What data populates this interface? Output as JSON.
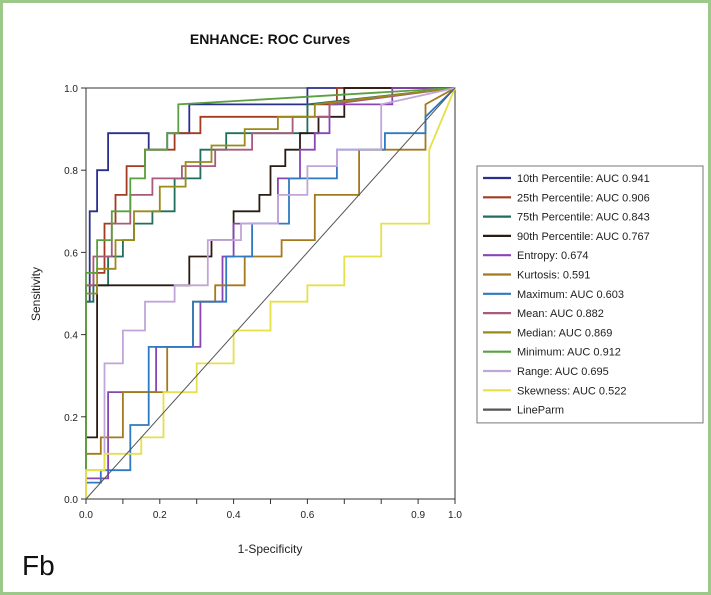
{
  "panel_label": "Fb",
  "chart_data": {
    "type": "line",
    "title": "ENHANCE: ROC Curves",
    "xlabel": "1-Specificity",
    "ylabel": "Sensitivity",
    "xlim": [
      0,
      1
    ],
    "ylim": [
      0,
      1
    ],
    "xticks": [
      "0.0",
      "0.1",
      "0.2",
      "0.3",
      "0.4",
      "0.5",
      "0.6",
      "0.7",
      "0.8",
      "0.9",
      "1.0"
    ],
    "xticks_labeled": [
      "0.0",
      "0.2",
      "0.4",
      "0.6",
      "0.9",
      "1.0"
    ],
    "yticks": [
      "0.0",
      "0.2",
      "0.4",
      "0.6",
      "0.8",
      "1.0"
    ],
    "grid": false,
    "legend_position": "right",
    "series": [
      {
        "name": "10th Percentile: AUC 0.941",
        "color": "#2b2f8c",
        "x": [
          0,
          0,
          0.01,
          0.01,
          0.03,
          0.03,
          0.06,
          0.06,
          0.17,
          0.17,
          0.22,
          0.22,
          0.28,
          0.28,
          0.6,
          0.6,
          0.68,
          0.68,
          1
        ],
        "y": [
          0,
          0.48,
          0.48,
          0.7,
          0.7,
          0.8,
          0.8,
          0.89,
          0.89,
          0.85,
          0.85,
          0.89,
          0.89,
          0.96,
          0.96,
          1,
          1,
          1,
          1
        ]
      },
      {
        "name": "25th Percentile: AUC 0.906",
        "color": "#a23b20",
        "x": [
          0,
          0,
          0.02,
          0.02,
          0.05,
          0.05,
          0.08,
          0.08,
          0.11,
          0.11,
          0.16,
          0.16,
          0.24,
          0.24,
          0.31,
          0.31,
          0.6,
          0.6,
          0.68,
          0.68,
          1
        ],
        "y": [
          0,
          0.52,
          0.52,
          0.55,
          0.55,
          0.67,
          0.67,
          0.74,
          0.74,
          0.81,
          0.81,
          0.85,
          0.85,
          0.89,
          0.89,
          0.93,
          0.93,
          0.96,
          0.96,
          1,
          1
        ]
      },
      {
        "name": "75th Percentile: AUC 0.843",
        "color": "#1f6e5e",
        "x": [
          0,
          0,
          0.02,
          0.02,
          0.06,
          0.06,
          0.1,
          0.1,
          0.13,
          0.13,
          0.18,
          0.18,
          0.24,
          0.24,
          0.31,
          0.31,
          0.38,
          0.38,
          0.6,
          0.6,
          1
        ],
        "y": [
          0,
          0.48,
          0.48,
          0.52,
          0.52,
          0.59,
          0.59,
          0.63,
          0.63,
          0.67,
          0.67,
          0.7,
          0.7,
          0.78,
          0.78,
          0.85,
          0.85,
          0.89,
          0.89,
          0.96,
          1
        ]
      },
      {
        "name": "90th Percentile: AUC 0.767",
        "color": "#2b1a10",
        "x": [
          0,
          0,
          0.03,
          0.03,
          0.28,
          0.28,
          0.34,
          0.34,
          0.4,
          0.4,
          0.47,
          0.47,
          0.5,
          0.5,
          0.54,
          0.54,
          0.58,
          0.58,
          0.63,
          0.63,
          0.7,
          0.7,
          1
        ],
        "y": [
          0,
          0.15,
          0.15,
          0.52,
          0.52,
          0.59,
          0.59,
          0.63,
          0.63,
          0.7,
          0.7,
          0.74,
          0.74,
          0.81,
          0.81,
          0.85,
          0.85,
          0.89,
          0.89,
          0.93,
          0.93,
          1,
          1
        ]
      },
      {
        "name": "Entropy: 0.674",
        "color": "#8a45b5",
        "x": [
          0,
          0,
          0.06,
          0.06,
          0.19,
          0.19,
          0.31,
          0.31,
          0.37,
          0.37,
          0.4,
          0.4,
          0.52,
          0.52,
          0.58,
          0.58,
          0.62,
          0.62,
          0.66,
          0.66,
          0.83,
          0.83,
          1
        ],
        "y": [
          0,
          0.05,
          0.05,
          0.26,
          0.26,
          0.37,
          0.37,
          0.48,
          0.48,
          0.59,
          0.59,
          0.67,
          0.67,
          0.78,
          0.78,
          0.85,
          0.85,
          0.89,
          0.89,
          0.96,
          0.96,
          1,
          1
        ]
      },
      {
        "name": "Kurtosis: 0.591",
        "color": "#a6781e",
        "x": [
          0,
          0,
          0.04,
          0.04,
          0.1,
          0.1,
          0.22,
          0.22,
          0.29,
          0.29,
          0.35,
          0.35,
          0.43,
          0.43,
          0.53,
          0.53,
          0.62,
          0.62,
          0.74,
          0.74,
          0.92,
          0.92,
          1
        ],
        "y": [
          0,
          0.11,
          0.11,
          0.15,
          0.15,
          0.26,
          0.26,
          0.37,
          0.37,
          0.48,
          0.48,
          0.52,
          0.52,
          0.59,
          0.59,
          0.63,
          0.63,
          0.74,
          0.74,
          0.85,
          0.85,
          0.96,
          1
        ]
      },
      {
        "name": "Maximum: AUC 0.603",
        "color": "#2f7ac0",
        "x": [
          0,
          0,
          0.04,
          0.04,
          0.12,
          0.12,
          0.17,
          0.17,
          0.29,
          0.29,
          0.38,
          0.38,
          0.45,
          0.45,
          0.55,
          0.55,
          0.68,
          0.68,
          0.81,
          0.81,
          0.92,
          0.92,
          1
        ],
        "y": [
          0,
          0.04,
          0.04,
          0.07,
          0.07,
          0.18,
          0.18,
          0.37,
          0.37,
          0.48,
          0.48,
          0.59,
          0.59,
          0.67,
          0.67,
          0.78,
          0.78,
          0.85,
          0.85,
          0.89,
          0.89,
          0.93,
          1
        ]
      },
      {
        "name": "Mean: AUC 0.882",
        "color": "#a85a7a",
        "x": [
          0,
          0,
          0.02,
          0.02,
          0.07,
          0.07,
          0.12,
          0.12,
          0.18,
          0.18,
          0.26,
          0.26,
          0.35,
          0.35,
          0.45,
          0.45,
          0.56,
          0.56,
          0.66,
          0.66,
          1
        ],
        "y": [
          0,
          0.52,
          0.52,
          0.59,
          0.59,
          0.67,
          0.67,
          0.74,
          0.74,
          0.78,
          0.78,
          0.81,
          0.81,
          0.85,
          0.85,
          0.89,
          0.89,
          0.93,
          0.93,
          0.96,
          1
        ]
      },
      {
        "name": "Median: AUC 0.869",
        "color": "#9a8a1a",
        "x": [
          0,
          0,
          0.03,
          0.03,
          0.08,
          0.08,
          0.13,
          0.13,
          0.2,
          0.2,
          0.27,
          0.27,
          0.34,
          0.34,
          0.43,
          0.43,
          0.52,
          0.52,
          0.62,
          0.62,
          1
        ],
        "y": [
          0,
          0.5,
          0.5,
          0.56,
          0.56,
          0.63,
          0.63,
          0.7,
          0.7,
          0.76,
          0.76,
          0.82,
          0.82,
          0.86,
          0.86,
          0.9,
          0.9,
          0.93,
          0.93,
          0.96,
          1
        ]
      },
      {
        "name": "Minimum: AUC 0.912",
        "color": "#5aa040",
        "x": [
          0,
          0,
          0.03,
          0.03,
          0.07,
          0.07,
          0.12,
          0.12,
          0.16,
          0.16,
          0.22,
          0.22,
          0.25,
          0.25,
          1
        ],
        "y": [
          0,
          0.55,
          0.55,
          0.63,
          0.63,
          0.7,
          0.7,
          0.78,
          0.78,
          0.85,
          0.85,
          0.89,
          0.89,
          0.96,
          1
        ]
      },
      {
        "name": "Range: AUC 0.695",
        "color": "#c0a6d8",
        "x": [
          0,
          0,
          0.05,
          0.05,
          0.1,
          0.1,
          0.16,
          0.16,
          0.24,
          0.24,
          0.33,
          0.33,
          0.42,
          0.42,
          0.52,
          0.52,
          0.6,
          0.6,
          0.68,
          0.68,
          0.8,
          0.8,
          1
        ],
        "y": [
          0,
          0.07,
          0.07,
          0.33,
          0.33,
          0.41,
          0.41,
          0.48,
          0.48,
          0.52,
          0.52,
          0.63,
          0.63,
          0.67,
          0.67,
          0.74,
          0.74,
          0.81,
          0.81,
          0.85,
          0.85,
          0.96,
          1
        ]
      },
      {
        "name": "Skewness: AUC 0.522",
        "color": "#e6e04a",
        "x": [
          0,
          0,
          0.05,
          0.05,
          0.1,
          0.1,
          0.15,
          0.15,
          0.21,
          0.21,
          0.3,
          0.3,
          0.4,
          0.4,
          0.5,
          0.5,
          0.6,
          0.6,
          0.7,
          0.7,
          0.8,
          0.8,
          0.93,
          0.93,
          1
        ],
        "y": [
          0,
          0.07,
          0.07,
          0.11,
          0.11,
          0.11,
          0.11,
          0.15,
          0.15,
          0.26,
          0.26,
          0.33,
          0.33,
          0.41,
          0.41,
          0.48,
          0.48,
          0.52,
          0.52,
          0.59,
          0.59,
          0.67,
          0.67,
          0.85,
          1
        ]
      },
      {
        "name": "LineParm",
        "color": "#555555",
        "x": [
          0,
          1
        ],
        "y": [
          0,
          1
        ]
      }
    ]
  }
}
